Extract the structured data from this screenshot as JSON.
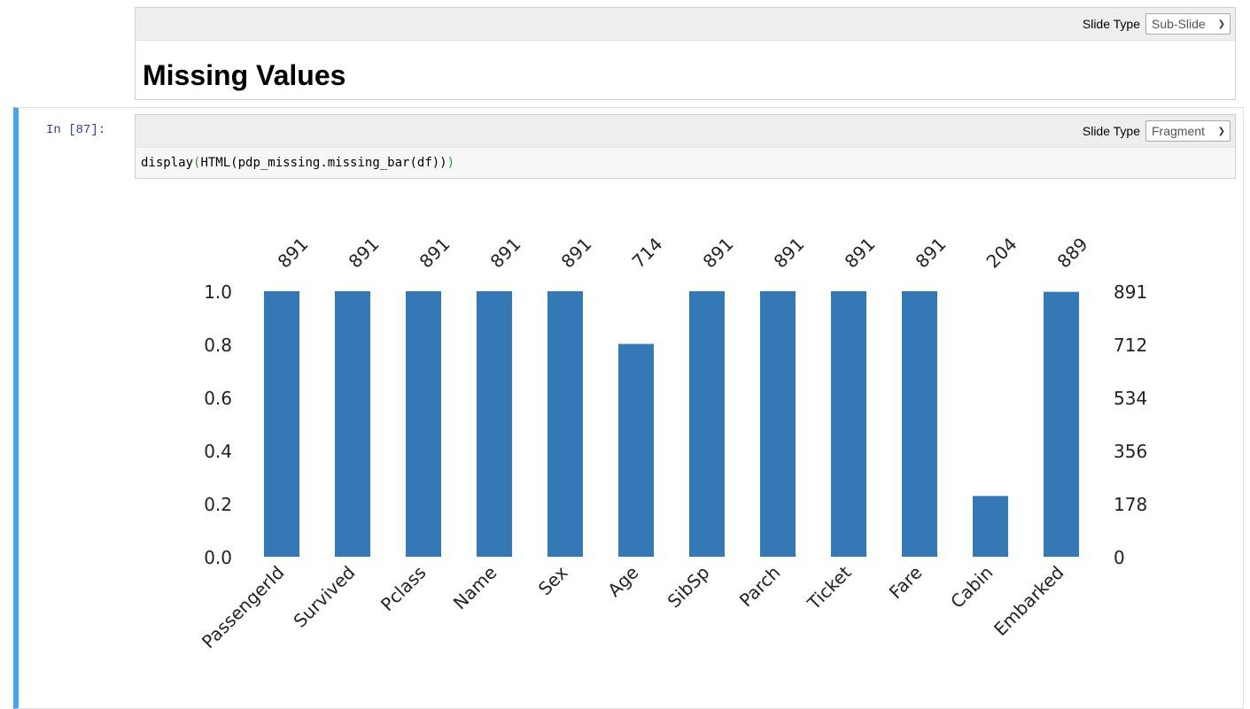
{
  "md_cell": {
    "slide_type_label": "Slide Type",
    "slide_type_value": "Sub-Slide",
    "heading": "Missing Values"
  },
  "code_cell": {
    "prompt": "In [87]:",
    "slide_type_label": "Slide Type",
    "slide_type_value": "Fragment",
    "code": {
      "fn": "display",
      "open": "(",
      "inner": "HTML(pdp_missing.missing_bar(df))",
      "close": ")"
    }
  },
  "colors": {
    "bar": "#3478b5",
    "cell_accent": "#42a5f5",
    "prompt": "#303f9f",
    "paren_match": "#22aa22"
  },
  "chart_data": {
    "type": "bar",
    "categories": [
      "PassengerId",
      "Survived",
      "Pclass",
      "Name",
      "Sex",
      "Age",
      "SibSp",
      "Parch",
      "Ticket",
      "Fare",
      "Cabin",
      "Embarked"
    ],
    "counts": [
      891,
      891,
      891,
      891,
      891,
      714,
      891,
      891,
      891,
      891,
      204,
      889
    ],
    "total": 891,
    "ylim": [
      0,
      1.0
    ],
    "left_ticks": [
      "0.0",
      "0.2",
      "0.4",
      "0.6",
      "0.8",
      "1.0"
    ],
    "right_ticks": [
      "0",
      "178",
      "356",
      "534",
      "712",
      "891"
    ],
    "grid": false
  }
}
